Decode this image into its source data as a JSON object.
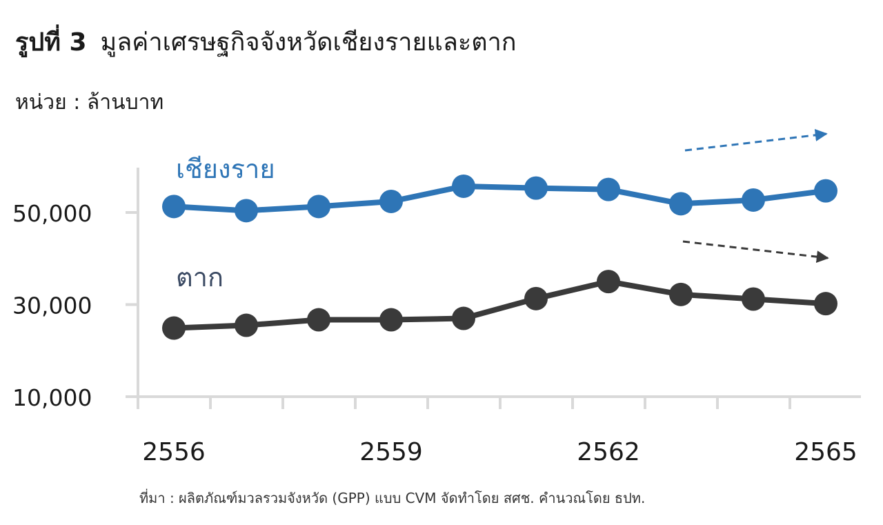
{
  "header": {
    "figure_number": "รูปที่ 3",
    "title": "มูลค่าเศรษฐกิจจังหวัดเชียงรายและตาก",
    "unit": "หน่วย : ล้านบาท"
  },
  "footer": {
    "source": "ที่มา : ผลิตภัณฑ์มวลรวมจังหวัด (GPP) แบบ CVM จัดทำโดย สศช. คำนวณโดย ธปท."
  },
  "colors": {
    "chiangrai": "#2e75b6",
    "tak": "#3a3a3a",
    "axis": "#d9d9d9",
    "tak_label": "#3b4a63"
  },
  "chart_data": {
    "type": "line",
    "title": "มูลค่าเศรษฐกิจจังหวัดเชียงรายและตาก",
    "ylabel": "หน่วย : ล้านบาท",
    "x": [
      2556,
      2557,
      2558,
      2559,
      2560,
      2561,
      2562,
      2563,
      2564,
      2565
    ],
    "x_tick_labels": [
      "2556",
      "2559",
      "2562",
      "2565"
    ],
    "x_tick_values": [
      2556,
      2559,
      2562,
      2565
    ],
    "ylim": [
      10000,
      60000
    ],
    "y_tick_labels": [
      "10,000",
      "30,000",
      "50,000"
    ],
    "y_tick_values": [
      10000,
      30000,
      50000
    ],
    "grid": false,
    "series": [
      {
        "name": "เชียงราย",
        "color": "#2e75b6",
        "values": [
          51300,
          50400,
          51300,
          52400,
          55700,
          55300,
          55000,
          51900,
          52700,
          54700
        ],
        "trend": "up"
      },
      {
        "name": "ตาก",
        "color": "#3a3a3a",
        "values": [
          24900,
          25500,
          26700,
          26700,
          27000,
          31300,
          35000,
          32200,
          31200,
          30200
        ],
        "trend": "down"
      }
    ]
  }
}
